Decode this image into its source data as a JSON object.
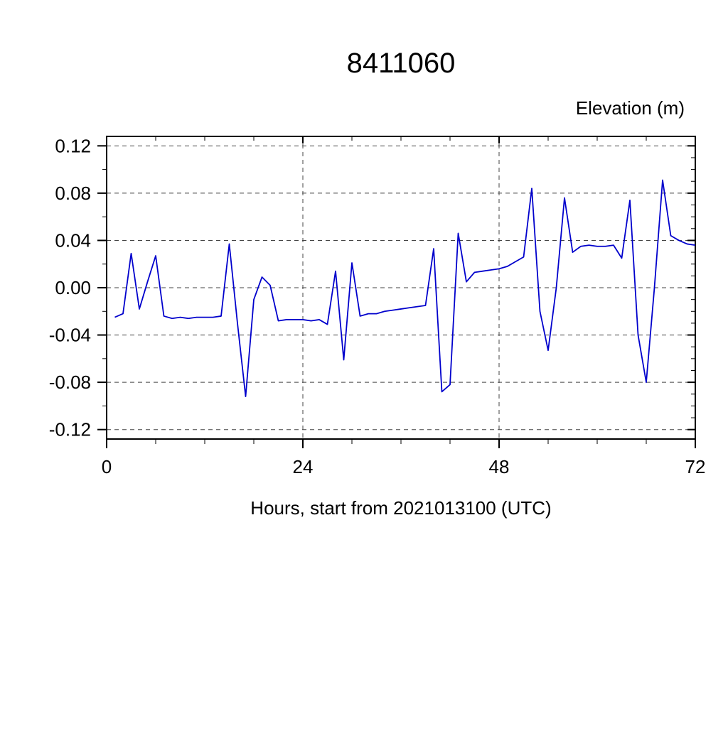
{
  "page": {
    "background": "#ffffff"
  },
  "chart_data": {
    "type": "line",
    "title": "8411060",
    "ylabel": "Elevation (m)",
    "xlabel": "Hours, start from 2021013100 (UTC)",
    "xlim": [
      0,
      72
    ],
    "ylim": [
      -0.128,
      0.128
    ],
    "xticks": [
      0,
      24,
      48,
      72
    ],
    "xtick_labels": [
      "0",
      "24",
      "48",
      "72"
    ],
    "x_minor_step": 6,
    "yticks": [
      -0.12,
      -0.08,
      -0.04,
      0,
      0.04,
      0.08,
      0.12
    ],
    "ytick_labels": [
      "-0.12",
      "-0.08",
      "-0.04",
      "0.00",
      "0.04",
      "0.08",
      "0.12"
    ],
    "y_minor_step_left": 0.02,
    "y_minor_step_right": 0.01,
    "grid": {
      "style": "dashed",
      "x_lines": [
        24,
        48
      ],
      "y_lines": [
        -0.12,
        -0.08,
        -0.04,
        0,
        0.04,
        0.08,
        0.12
      ]
    },
    "line_color": "#0000cc",
    "axis_color": "#000000",
    "grid_color": "#444444",
    "series": [
      {
        "name": "elevation",
        "x": [
          1,
          2,
          3,
          4,
          5,
          6,
          7,
          8,
          9,
          10,
          11,
          12,
          13,
          14,
          15,
          16,
          17,
          18,
          19,
          20,
          21,
          22,
          23,
          24,
          25,
          26,
          27,
          28,
          29,
          30,
          31,
          32,
          33,
          34,
          35,
          36,
          37,
          38,
          39,
          40,
          41,
          42,
          43,
          44,
          45,
          46,
          47,
          48,
          49,
          50,
          51,
          52,
          53,
          54,
          55,
          56,
          57,
          58,
          59,
          60,
          61,
          62,
          63,
          64,
          65,
          66,
          67,
          68,
          69,
          70,
          71,
          72
        ],
        "y": [
          -0.025,
          -0.022,
          0.029,
          -0.018,
          0.005,
          0.027,
          -0.024,
          -0.026,
          -0.025,
          -0.026,
          -0.025,
          -0.025,
          -0.025,
          -0.024,
          0.037,
          -0.03,
          -0.092,
          -0.01,
          0.009,
          0.002,
          -0.028,
          -0.027,
          -0.027,
          -0.027,
          -0.028,
          -0.027,
          -0.031,
          0.014,
          -0.061,
          0.021,
          -0.024,
          -0.022,
          -0.022,
          -0.02,
          -0.019,
          -0.018,
          -0.017,
          -0.016,
          -0.015,
          0.033,
          -0.088,
          -0.082,
          0.046,
          0.005,
          0.013,
          0.014,
          0.015,
          0.016,
          0.018,
          0.022,
          0.026,
          0.084,
          -0.02,
          -0.053,
          0.0,
          0.076,
          0.03,
          0.035,
          0.036,
          0.035,
          0.035,
          0.036,
          0.025,
          0.074,
          -0.04,
          -0.08,
          0.0,
          0.091,
          0.044,
          0.04,
          0.037,
          0.036
        ]
      }
    ]
  }
}
